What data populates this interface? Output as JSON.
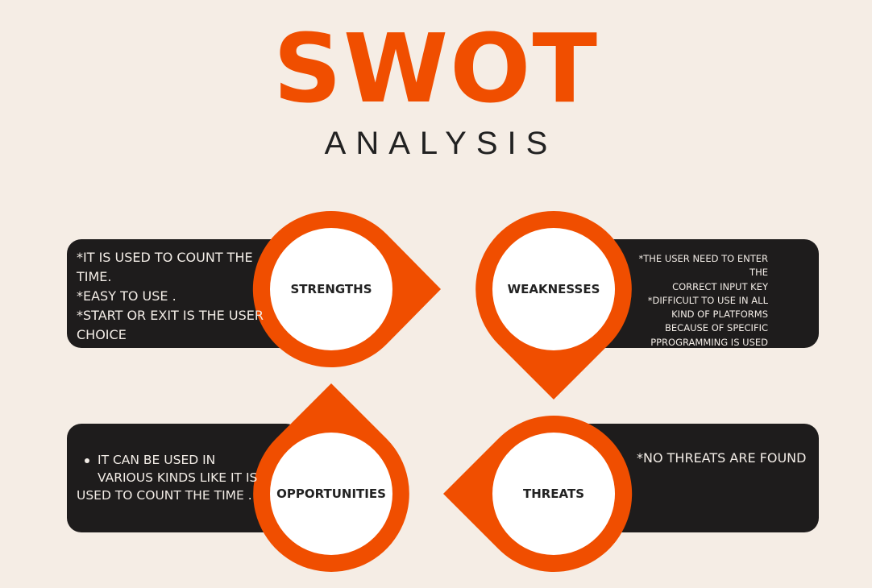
{
  "title": "SWOT",
  "subtitle": "ANALYSIS",
  "colors": {
    "accent": "#f04e00",
    "panel": "#1e1c1c",
    "background": "#f5ede5"
  },
  "strengths": {
    "label": "STRENGTHS",
    "lines": [
      "*IT IS USED TO COUNT THE",
      "TIME.",
      "*EASY TO USE .",
      "*START OR EXIT IS THE USER",
      "CHOICE"
    ]
  },
  "weaknesses": {
    "label": "WEAKNESSES",
    "lines": [
      "*THE USER NEED TO ENTER",
      "THE",
      "CORRECT INPUT KEY",
      "*DIFFICULT TO USE IN ALL",
      "KIND OF PLATFORMS",
      "BECAUSE OF SPECIFIC",
      "PPROGRAMMING IS USED"
    ]
  },
  "opportunities": {
    "label": "OPPORTUNITIES",
    "bullet_first": "IT CAN BE USED IN",
    "bullet_second": "VARIOUS KINDS LIKE IT IS",
    "bullet_third": "USED TO COUNT THE TIME ."
  },
  "threats": {
    "label": "THREATS",
    "lines": [
      "*NO THREATS ARE FOUND"
    ]
  }
}
